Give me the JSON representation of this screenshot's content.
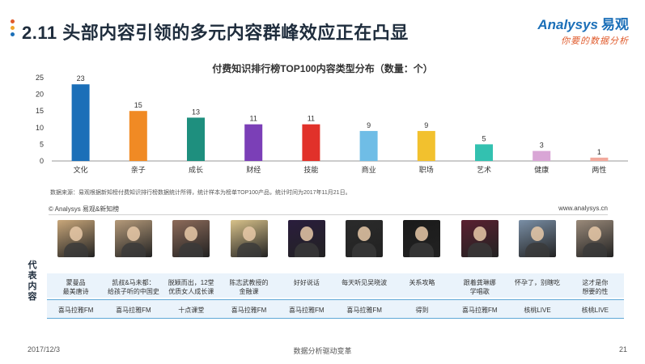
{
  "header": {
    "title": "2.11 头部内容引领的多元内容群峰效应正在凸显",
    "brand_name": "Analysys",
    "brand_cn": "易观",
    "brand_slogan": "你要的数据分析"
  },
  "colors": {
    "dot1": "#e05a2b",
    "dot2": "#f0a42a",
    "dot3": "#1b6fb8",
    "band": "#eaf3fb",
    "line": "#5fa8d6"
  },
  "chart_data": {
    "type": "bar",
    "title": "付费知识排行榜TOP100内容类型分布（数量：个）",
    "categories": [
      "文化",
      "亲子",
      "成长",
      "财经",
      "技能",
      "商业",
      "职场",
      "艺术",
      "健康",
      "两性"
    ],
    "values": [
      23,
      15,
      13,
      11,
      11,
      9,
      9,
      5,
      3,
      1
    ],
    "bar_colors": [
      "#1b6fb8",
      "#f08a24",
      "#1e8f7e",
      "#7b3fb7",
      "#e1312a",
      "#6fbde6",
      "#f2c12e",
      "#33c1b0",
      "#d9a6d6",
      "#f2a99c"
    ],
    "ylim": [
      0,
      25
    ],
    "yticks": [
      0,
      5,
      10,
      15,
      20,
      25
    ],
    "grid": false,
    "legend": "none"
  },
  "source_note": "数据来源：易观根据新知榜付费知识排行榜数据统计所得，统计样本为榜单TOP100产品，统计时间为2017年11月21日。",
  "copyright": "© Analysys 易观&新知榜",
  "website": "www.analysys.cn",
  "side_label": [
    "代",
    "表",
    "内",
    "容"
  ],
  "items": [
    {
      "desc": "蒙曼品\n最美唐诗",
      "platform": "喜马拉雅FM",
      "thumb_color": "#c9a77a",
      "thumb_text": ""
    },
    {
      "desc": "凯叔&马未都：\n给孩子听的中国史",
      "platform": "喜马拉雅FM",
      "thumb_color": "#b59a7a",
      "thumb_text": ""
    },
    {
      "desc": "脱颖而出，12堂\n优质女人成长课",
      "platform": "十点课堂",
      "thumb_color": "#8d6b5a",
      "thumb_text": ""
    },
    {
      "desc": "陈志武教授的\n金融课",
      "platform": "喜马拉雅FM",
      "thumb_color": "#d8c28a",
      "thumb_text": ""
    },
    {
      "desc": "好好说话",
      "platform": "喜马拉雅FM",
      "thumb_color": "#2a1d3d",
      "thumb_text": ""
    },
    {
      "desc": "每天听见吴晓波",
      "platform": "喜马拉雅FM",
      "thumb_color": "#2b2b2b",
      "thumb_text": ""
    },
    {
      "desc": "关系攻略",
      "platform": "得到",
      "thumb_color": "#1a1a1a",
      "thumb_text": ""
    },
    {
      "desc": "跟着龚琳娜\n学唱歌",
      "platform": "喜马拉雅FM",
      "thumb_color": "#5a2030",
      "thumb_text": ""
    },
    {
      "desc": "怀孕了，别瞎吃",
      "platform": "核桃LIVE",
      "thumb_color": "#7a8fa6",
      "thumb_text": ""
    },
    {
      "desc": "这才是你\n想要的性",
      "platform": "核桃LIVE",
      "thumb_color": "#9a8a7a",
      "thumb_text": ""
    }
  ],
  "footer": {
    "date": "2017/12/3",
    "center": "数据分析驱动变革",
    "page": "21"
  }
}
